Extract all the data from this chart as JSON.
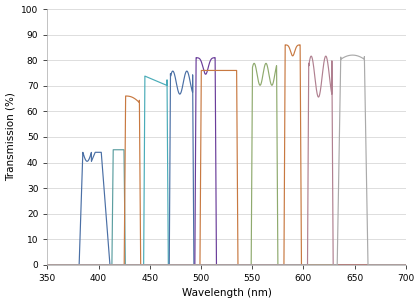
{
  "xlabel": "Wavelength (nm)",
  "ylabel": "Transmission (%)",
  "xlim": [
    350,
    700
  ],
  "ylim": [
    0,
    100
  ],
  "xticks": [
    350,
    400,
    450,
    500,
    550,
    600,
    650,
    700
  ],
  "yticks": [
    0,
    10,
    20,
    30,
    40,
    50,
    60,
    70,
    80,
    90,
    100
  ],
  "bg_color": "#ffffff",
  "grid_color": "#d8d8d8",
  "series": [
    {
      "color": "#4a6fa5",
      "lo": 381,
      "hi": 411,
      "peak": 44,
      "shape": "blue1"
    },
    {
      "color": "#5b9ea0",
      "lo": 413,
      "hi": 426,
      "peak": 45,
      "shape": "flat"
    },
    {
      "color": "#c87941",
      "lo": 425,
      "hi": 441,
      "peak": 66,
      "shape": "orange1"
    },
    {
      "color": "#4aacb8",
      "lo": 444,
      "hi": 468,
      "peak": 74,
      "shape": "cyan1"
    },
    {
      "color": "#4a6fa5",
      "lo": 469,
      "hi": 493,
      "peak": 75,
      "shape": "blue2"
    },
    {
      "color": "#6a3d9a",
      "lo": 494,
      "hi": 515,
      "peak": 81,
      "shape": "purple1"
    },
    {
      "color": "#c87941",
      "lo": 499,
      "hi": 536,
      "peak": 76,
      "shape": "flat"
    },
    {
      "color": "#8faa6e",
      "lo": 549,
      "hi": 575,
      "peak": 78,
      "shape": "green2"
    },
    {
      "color": "#c87941",
      "lo": 581,
      "hi": 598,
      "peak": 86,
      "shape": "orange3"
    },
    {
      "color": "#b08090",
      "lo": 604,
      "hi": 629,
      "peak": 80,
      "shape": "mauve"
    },
    {
      "color": "#aaaaaa",
      "lo": 633,
      "hi": 663,
      "peak": 82,
      "shape": "gray1"
    }
  ]
}
